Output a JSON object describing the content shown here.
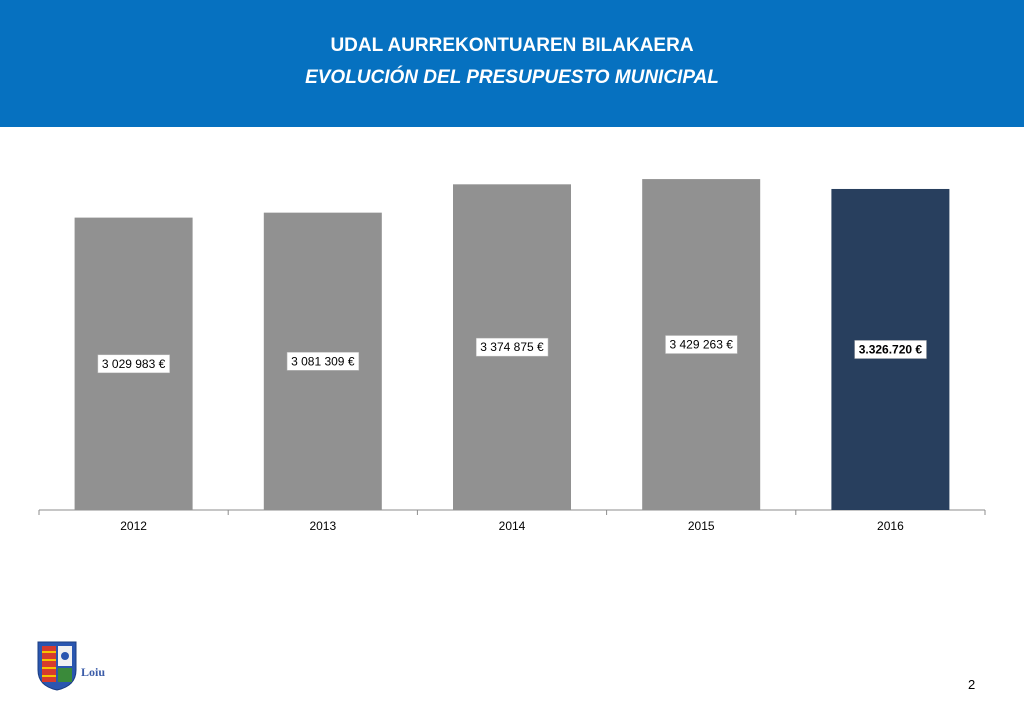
{
  "header": {
    "title": "UDAL AURREKONTUAREN BILAKAERA",
    "subtitle": "EVOLUCIÓN DEL PRESUPUESTO MUNICIPAL"
  },
  "chart_data": {
    "type": "bar",
    "categories": [
      "2012",
      "2013",
      "2014",
      "2015",
      "2016"
    ],
    "values": [
      3029983,
      3081309,
      3374875,
      3429263,
      3326720
    ],
    "data_labels": [
      "3 029 983 €",
      "3 081 309 €",
      "3 374 875 €",
      "3 429 263 €",
      "3.326.720 €"
    ],
    "colors": [
      "#919191",
      "#919191",
      "#919191",
      "#919191",
      "#283f5e"
    ],
    "ylim": [
      0,
      4000000
    ],
    "grid": false,
    "legend": "none"
  },
  "footer": {
    "logo_text": "Loiu",
    "page_number": "2"
  }
}
